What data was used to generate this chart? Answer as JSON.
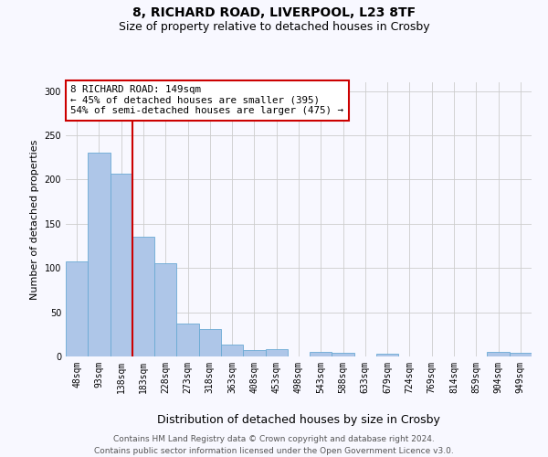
{
  "title1": "8, RICHARD ROAD, LIVERPOOL, L23 8TF",
  "title2": "Size of property relative to detached houses in Crosby",
  "xlabel": "Distribution of detached houses by size in Crosby",
  "ylabel": "Number of detached properties",
  "categories": [
    "48sqm",
    "93sqm",
    "138sqm",
    "183sqm",
    "228sqm",
    "273sqm",
    "318sqm",
    "363sqm",
    "408sqm",
    "453sqm",
    "498sqm",
    "543sqm",
    "588sqm",
    "633sqm",
    "679sqm",
    "724sqm",
    "769sqm",
    "814sqm",
    "859sqm",
    "904sqm",
    "949sqm"
  ],
  "values": [
    107,
    230,
    207,
    135,
    105,
    37,
    31,
    13,
    7,
    8,
    0,
    5,
    4,
    0,
    3,
    0,
    0,
    0,
    0,
    5,
    4
  ],
  "bar_color": "#aec6e8",
  "bar_edge_color": "#6aaad4",
  "property_line_color": "#cc0000",
  "annotation_text": "8 RICHARD ROAD: 149sqm\n← 45% of detached houses are smaller (395)\n54% of semi-detached houses are larger (475) →",
  "annotation_box_color": "white",
  "annotation_box_edge_color": "#cc0000",
  "ylim": [
    0,
    310
  ],
  "yticks": [
    0,
    50,
    100,
    150,
    200,
    250,
    300
  ],
  "footer_text": "Contains HM Land Registry data © Crown copyright and database right 2024.\nContains public sector information licensed under the Open Government Licence v3.0.",
  "bg_color": "#f8f8ff",
  "grid_color": "#cccccc",
  "title1_fontsize": 10,
  "title2_fontsize": 9,
  "xlabel_fontsize": 9,
  "ylabel_fontsize": 8,
  "tick_fontsize": 7,
  "footer_fontsize": 6.5,
  "annotation_fontsize": 7.8
}
